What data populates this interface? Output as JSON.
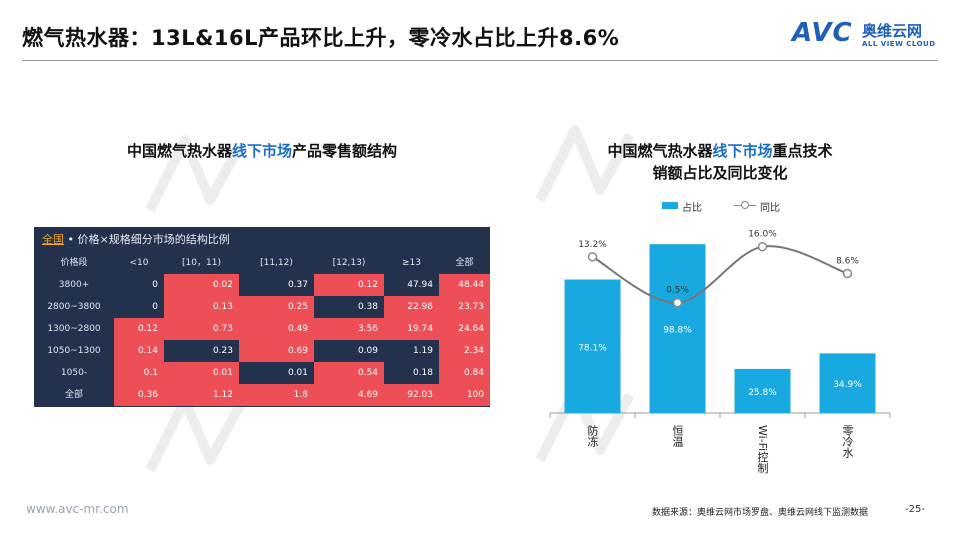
{
  "header": {
    "title": "燃气热水器：13L&16L产品环比上升，零冷水占比上升8.6%",
    "logo_mark": "AVC",
    "logo_cn": "奥维云网",
    "logo_en": "ALL VIEW CLOUD"
  },
  "left_panel": {
    "title_pre": "中国燃气热水器",
    "title_hl": "线下市场",
    "title_post": "产品零售额结构"
  },
  "table": {
    "scope": "全国",
    "caption": " • 价格×规格细分市场的结构比例",
    "columns": [
      "价格段",
      "<10",
      "[10，11)",
      "[11,12)",
      "[12,13)",
      "≥13",
      "全部"
    ],
    "rows": [
      {
        "label": "3800+",
        "values": [
          "0",
          "0.02",
          "0.37",
          "0.12",
          "47.94",
          "48.44"
        ],
        "hi": [
          false,
          true,
          false,
          true,
          false,
          true
        ]
      },
      {
        "label": "2800~3800",
        "values": [
          "0",
          "0.13",
          "0.25",
          "0.38",
          "22.98",
          "23.73"
        ],
        "hi": [
          false,
          true,
          true,
          false,
          true,
          true
        ]
      },
      {
        "label": "1300~2800",
        "values": [
          "0.12",
          "0.73",
          "0.49",
          "3.56",
          "19.74",
          "24.64"
        ],
        "hi": [
          true,
          true,
          true,
          true,
          true,
          true
        ]
      },
      {
        "label": "1050~1300",
        "values": [
          "0.14",
          "0.23",
          "0.69",
          "0.09",
          "1.19",
          "2.34"
        ],
        "hi": [
          true,
          false,
          true,
          false,
          false,
          true
        ]
      },
      {
        "label": "1050-",
        "values": [
          "0.1",
          "0.01",
          "0.01",
          "0.54",
          "0.18",
          "0.84"
        ],
        "hi": [
          true,
          true,
          false,
          true,
          false,
          true
        ]
      },
      {
        "label": "全部",
        "values": [
          "0.36",
          "1.12",
          "1.8",
          "4.69",
          "92.03",
          "100"
        ],
        "hi": [
          true,
          true,
          true,
          true,
          true,
          true
        ]
      }
    ],
    "colors": {
      "dark": "#23314d",
      "highlight": "#ee4e56"
    }
  },
  "right_panel": {
    "title_line1_pre": "中国燃气热水器",
    "title_line1_hl": "线下市场",
    "title_line1_post": "重点技术",
    "title_line2": "销额占比及同比变化"
  },
  "chart_data": {
    "type": "bar",
    "categories": [
      "防冻",
      "恒温",
      "Wi-Fi控制",
      "零冷水"
    ],
    "series": [
      {
        "name": "占比",
        "type": "bar",
        "values": [
          78.1,
          98.8,
          25.8,
          34.9
        ],
        "labels": [
          "78.1%",
          "98.8%",
          "25.8%",
          "34.9%"
        ],
        "color": "#18a9e0"
      },
      {
        "name": "同比",
        "type": "line",
        "values": [
          13.2,
          0.5,
          16.0,
          8.6
        ],
        "labels": [
          "13.2%",
          "0.5%",
          "16.0%",
          "8.6%"
        ],
        "color": "#888888"
      }
    ],
    "ylim": [
      0,
      110
    ],
    "y2lim": [
      -30,
      22
    ],
    "legend": "top-center",
    "grid": false
  },
  "footer": {
    "site": "www.avc-mr.com",
    "source": "数据来源：奥维云网市场罗盘、奥维云网线下监测数据",
    "page": "-25-"
  }
}
